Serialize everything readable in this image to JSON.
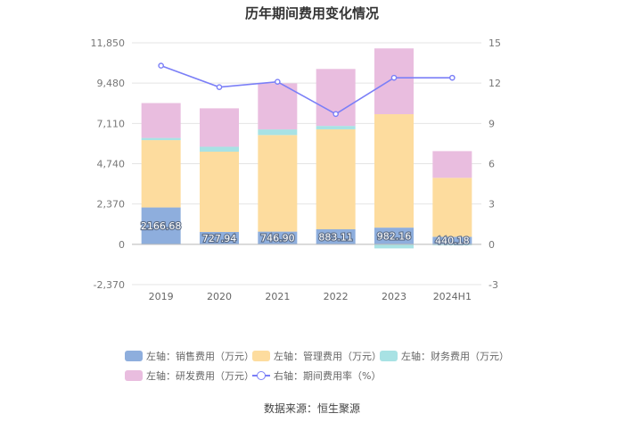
{
  "chart_data": {
    "type": "bar",
    "title": "历年期间费用变化情况",
    "categories": [
      "2019",
      "2020",
      "2021",
      "2022",
      "2023",
      "2024H1"
    ],
    "left_axis": {
      "ticks": [
        "11,850",
        "9,480",
        "7,110",
        "4,740",
        "2,370",
        "0",
        "-2,370"
      ],
      "ylim": [
        -2370,
        11850
      ]
    },
    "right_axis": {
      "ticks": [
        "15",
        "12",
        "9",
        "6",
        "3",
        "0",
        "-3"
      ],
      "ylim": [
        -3,
        15
      ]
    },
    "series": [
      {
        "name": "左轴：销售费用（万元）",
        "color": "#8eaedd",
        "values": [
          2166.68,
          727.94,
          746.9,
          883.11,
          982.16,
          440.18
        ],
        "labels": [
          "2166.68",
          "727.94",
          "746.90",
          "883.11",
          "982.16",
          "440.18"
        ]
      },
      {
        "name": "左轴：管理费用（万元）",
        "color": "#fddc9e",
        "values": [
          3960,
          4720,
          5680,
          5880,
          6670,
          3470
        ]
      },
      {
        "name": "左轴：财务费用（万元）",
        "color": "#a8e2e4",
        "values": [
          130,
          290,
          330,
          200,
          -240,
          -60
        ]
      },
      {
        "name": "左轴：研发费用（万元）",
        "color": "#e9bddf",
        "values": [
          2050,
          2260,
          2710,
          3350,
          3870,
          1570
        ]
      }
    ],
    "line_series": {
      "name": "右轴：期间费用率（%）",
      "color": "#7b7ff7",
      "values": [
        13.3,
        11.7,
        12.1,
        9.7,
        12.4,
        12.4
      ]
    }
  },
  "source": "数据来源：恒生聚源"
}
